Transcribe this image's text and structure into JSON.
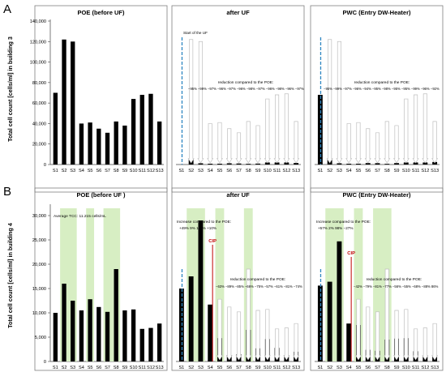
{
  "row_a": {
    "letter": "A",
    "ylabel": "Total cell count [cells/ml] in building 3",
    "yticks": [
      "0",
      "20,000",
      "40,000",
      "60,000",
      "80,000",
      "100,000",
      "120,000",
      "140,000"
    ]
  },
  "row_b": {
    "letter": "B",
    "ylabel": "Total cell count [cells/ml] in building 4",
    "yticks": [
      "0",
      "5,000",
      "10,000",
      "15,000",
      "20,000",
      "25,000",
      "30,000"
    ]
  },
  "annotations": {
    "uf_start": "Start of the UF",
    "reduction_label": "reduction compared to the POE:",
    "reduction_uf_a": "−95% −99% −97% −96% −97% −96% −98% −97% −96% −98% −96% −97%",
    "reduction_pwc_a": "−95% −99% −97% −96% −94% −95% −98% −95% −95% −99% −96% −92%",
    "avg_tcc": "Average TCC: 11.215 cells/mL",
    "increase_label": "Increase compared to the POE:",
    "increase_uf_b": "+49% 9% 132% +10%",
    "increase_pwc_b": "+57% 2% 98% −27%",
    "cip": "CIP",
    "reduction_uf_b": "−63% −89% −85% −66% −75% −57% −61% −81% −74%",
    "reduction_pwc_b": "−42% −79% −81% −77% −56% −55% −68% −88% 86%"
  },
  "chart_data": [
    {
      "type": "bar",
      "title": "POE (before UF)",
      "categories": [
        "S1",
        "S2",
        "S3",
        "S4",
        "S5",
        "S6",
        "S7",
        "S8",
        "S9",
        "S10",
        "S11",
        "S12",
        "S13"
      ],
      "values": [
        70000,
        122000,
        120000,
        40000,
        41000,
        35000,
        31000,
        42000,
        38000,
        64000,
        68000,
        69000,
        42000
      ],
      "ylim": [
        0,
        140000
      ]
    },
    {
      "type": "bar",
      "title": "after UF",
      "categories": [
        "S1",
        "S2",
        "S3",
        "S4",
        "S5",
        "S6",
        "S7",
        "S8",
        "S9",
        "S10",
        "S11",
        "S12",
        "S13"
      ],
      "values": [
        0,
        5500,
        1200,
        800,
        800,
        1200,
        1000,
        700,
        900,
        2000,
        2000,
        2000,
        1500
      ],
      "ylim": [
        0,
        140000
      ]
    },
    {
      "type": "bar",
      "title": "PWC (Entry DW-Heater)",
      "categories": [
        "S1",
        "S2",
        "S3",
        "S4",
        "S5",
        "S6",
        "S7",
        "S8",
        "S9",
        "S10",
        "S11",
        "S12",
        "S13"
      ],
      "values": [
        68000,
        6000,
        1200,
        800,
        800,
        1400,
        1300,
        700,
        1400,
        2000,
        2000,
        2000,
        2500
      ],
      "ylim": [
        0,
        140000
      ]
    },
    {
      "type": "bar",
      "title": "POE (before UF )",
      "categories": [
        "S1",
        "S2",
        "S3",
        "S4",
        "S5",
        "S6",
        "S7",
        "S8",
        "S9",
        "S10",
        "S11",
        "S12",
        "S13"
      ],
      "values": [
        10000,
        16000,
        12500,
        10500,
        12800,
        11200,
        10200,
        19000,
        10500,
        10700,
        6700,
        6900,
        7800
      ],
      "ylim": [
        0,
        32000
      ]
    },
    {
      "type": "bar",
      "title": "after UF",
      "categories": [
        "S1",
        "S2",
        "S3",
        "S4",
        "S5",
        "S6",
        "S7",
        "S8",
        "S9",
        "S10",
        "S11",
        "S12",
        "S13"
      ],
      "values": [
        15000,
        17500,
        29000,
        11700,
        4800,
        1300,
        1500,
        6500,
        2700,
        4600,
        2800,
        1300,
        2000
      ],
      "ylim": [
        0,
        32000
      ]
    },
    {
      "type": "bar",
      "title": "PWC (Entry DW-Heater)",
      "categories": [
        "S1",
        "S2",
        "S3",
        "S4",
        "S5",
        "S6",
        "S7",
        "S8",
        "S9",
        "S10",
        "S11",
        "S12",
        "S13"
      ],
      "values": [
        15600,
        16400,
        24700,
        7800,
        7500,
        2400,
        2200,
        4500,
        4700,
        4800,
        2100,
        1100,
        1100
      ],
      "ylim": [
        0,
        32000
      ]
    }
  ]
}
